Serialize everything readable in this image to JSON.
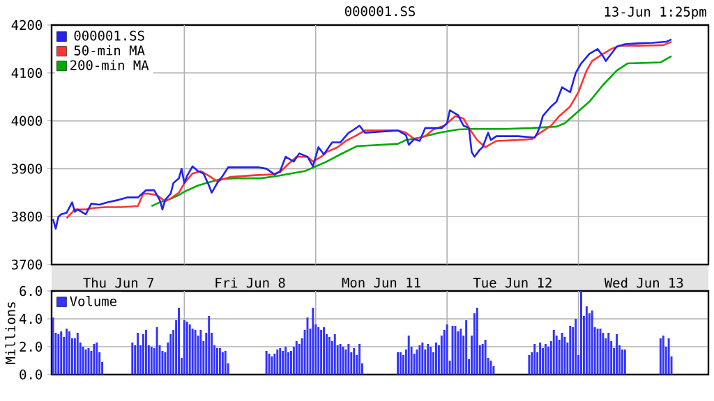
{
  "chart_data": [
    {
      "type": "line",
      "title": "000001.SS",
      "subtitle": "13-Jun 1:25pm",
      "categories": [
        null,
        null,
        null,
        null,
        null,
        null,
        null,
        null,
        null,
        null,
        null,
        null,
        null,
        null,
        null,
        null,
        null,
        null,
        null,
        null,
        null,
        null,
        null,
        null,
        "Thu Jun 7",
        null,
        null,
        null,
        null,
        null,
        null,
        null,
        null,
        null,
        null,
        null,
        null,
        null,
        null,
        null,
        null,
        null,
        null,
        null,
        null,
        null,
        null,
        null,
        null,
        null,
        null,
        null,
        null,
        null,
        null,
        null,
        null,
        null,
        null,
        null,
        null,
        null,
        null,
        null,
        null,
        null,
        null,
        null,
        null,
        null,
        null,
        null,
        "Fri Jun 8",
        null,
        null,
        null,
        null,
        null,
        null,
        null,
        null,
        null,
        null,
        null,
        null,
        null,
        null,
        null,
        null,
        null,
        null,
        null,
        null,
        null,
        null,
        null,
        null,
        null,
        null,
        null,
        null,
        null,
        null,
        null,
        null,
        null,
        null,
        null,
        null,
        null,
        null,
        null,
        null,
        null,
        null,
        null,
        null,
        null,
        null,
        null,
        "Mon Jun 11",
        null,
        null,
        null,
        null,
        null,
        null,
        null,
        null,
        null,
        null,
        null,
        null,
        null,
        null,
        null,
        null,
        null,
        null,
        null,
        null,
        null,
        null,
        null,
        null,
        null,
        null,
        null,
        null,
        null,
        null,
        null,
        null,
        null,
        null,
        null,
        null,
        null,
        null,
        null,
        null,
        null,
        null,
        null,
        null,
        null,
        null,
        null,
        "Tue Jun 12",
        null,
        null,
        null,
        null,
        null,
        null,
        null,
        null,
        null,
        null,
        null,
        null,
        null,
        null,
        null,
        null,
        null,
        null,
        null,
        null,
        null,
        null,
        null,
        null,
        null,
        null,
        null,
        null,
        null,
        null,
        null,
        null,
        null,
        null,
        null,
        null,
        null,
        null,
        null,
        null,
        null,
        null,
        null,
        null,
        null,
        null,
        null,
        "Wed Jun 13",
        null,
        null,
        null,
        null,
        null,
        null,
        null,
        null,
        null,
        null,
        null,
        null,
        null,
        null,
        null,
        null,
        null,
        null,
        null,
        null,
        null,
        null,
        null
      ],
      "ylim": [
        3700,
        4200
      ],
      "yticks": [
        3700,
        3800,
        3900,
        4000,
        4100,
        4200
      ],
      "grid": true,
      "legend": "top left",
      "series": [
        {
          "name": "000001.SS",
          "color": "#2222ee",
          "values": [
            3795,
            3775,
            3800,
            3805,
            null,
            3808,
            null,
            3830,
            3810,
            3815,
            null,
            null,
            3805,
            null,
            3827,
            null,
            null,
            3825,
            null,
            null,
            3830,
            null,
            null,
            null,
            3835,
            null,
            null,
            3840,
            null,
            null,
            null,
            3840,
            null,
            null,
            3855,
            null,
            null,
            3855,
            null,
            3835,
            3815,
            3835,
            null,
            3848,
            3870,
            null,
            3880,
            3900,
            3870,
            3885,
            null,
            3905,
            null,
            3895,
            null,
            3890,
            null,
            3865,
            3850,
            null,
            3870,
            null,
            3885,
            null,
            3903,
            null,
            null,
            null,
            null,
            null,
            3903,
            null,
            null,
            null,
            null,
            3903,
            null,
            null,
            3900,
            null,
            null,
            3888,
            null,
            3895,
            null,
            3925,
            null,
            null,
            3915,
            null,
            3932,
            null,
            null,
            3925,
            null,
            3905,
            null,
            3945,
            null,
            3930,
            null,
            null,
            3955,
            null,
            null,
            3955,
            null,
            null,
            3975,
            null,
            3982,
            null,
            3990,
            null,
            3975,
            null,
            null,
            null,
            null,
            null,
            null,
            null,
            null,
            null,
            null,
            null,
            3980,
            null,
            null,
            3970,
            3950,
            null,
            3962,
            null,
            3958,
            null,
            3985,
            null,
            null,
            3985,
            null,
            null,
            3985,
            null,
            3995,
            4022,
            null,
            null,
            4012,
            null,
            3990,
            null,
            3985,
            3935,
            3925,
            null,
            3940,
            3945,
            null,
            3975,
            3960,
            null,
            3968,
            null,
            null,
            null,
            null,
            null,
            null,
            null,
            3968,
            null,
            null,
            null,
            null,
            null,
            3965,
            3975,
            3990,
            4010,
            null,
            null,
            4030,
            null,
            4040,
            null,
            4070,
            null,
            null,
            4060,
            null,
            4100,
            null,
            4120,
            null,
            null,
            4140,
            null,
            null,
            4150,
            null,
            4135,
            4125,
            null,
            4140,
            null,
            4155,
            null,
            null,
            4160,
            null,
            null,
            null,
            null,
            4162,
            null,
            null,
            null,
            null,
            4163,
            null,
            null,
            null,
            null,
            4165,
            null,
            4170,
            null,
            null,
            null,
            null,
            null,
            null,
            null,
            null,
            null,
            null,
            null,
            null,
            null
          ]
        },
        {
          "name": "50-min MA",
          "color": "#ff3333",
          "values": [
            null,
            null,
            null,
            null,
            null,
            3797,
            null,
            null,
            3815,
            null,
            null,
            null,
            3815,
            null,
            null,
            3818,
            null,
            null,
            null,
            3820,
            null,
            null,
            null,
            null,
            null,
            3820,
            null,
            null,
            null,
            null,
            null,
            3822,
            null,
            3848,
            null,
            3848,
            null,
            null,
            3845,
            null,
            null,
            3832,
            null,
            3838,
            null,
            null,
            3850,
            null,
            3870,
            null,
            null,
            3890,
            null,
            null,
            3895,
            null,
            null,
            3885,
            null,
            null,
            3874,
            null,
            3878,
            null,
            null,
            3883,
            null,
            null,
            null,
            null,
            null,
            null,
            null,
            null,
            null,
            3887,
            null,
            null,
            null,
            null,
            3888,
            null,
            null,
            3893,
            null,
            null,
            3910,
            null,
            null,
            3925,
            null,
            null,
            null,
            3925,
            null,
            3915,
            null,
            null,
            3925,
            null,
            3935,
            null,
            null,
            null,
            3945,
            null,
            null,
            3958,
            null,
            null,
            null,
            3970,
            null,
            null,
            3980,
            null,
            null,
            null,
            null,
            null,
            null,
            null,
            null,
            null,
            null,
            null,
            3980,
            null,
            null,
            3975,
            null,
            null,
            3962,
            null,
            null,
            null,
            3968,
            null,
            null,
            3982,
            null,
            null,
            null,
            3990,
            null,
            null,
            null,
            4010,
            null,
            null,
            4005,
            null,
            3985,
            null,
            null,
            3960,
            null,
            null,
            3945,
            null,
            null,
            null,
            3958,
            null,
            null,
            null,
            null,
            null,
            null,
            null,
            3960,
            null,
            null,
            null,
            null,
            3962,
            null,
            null,
            3975,
            null,
            null,
            null,
            3990,
            null,
            null,
            4010,
            null,
            null,
            null,
            4030,
            null,
            null,
            4060,
            null,
            null,
            4105,
            null,
            4125,
            null,
            null,
            null,
            4140,
            null,
            null,
            4150,
            null,
            null,
            4157,
            null,
            null,
            null,
            null,
            null,
            null,
            4157,
            null,
            null,
            null,
            null,
            null,
            null,
            null,
            null,
            4158,
            null,
            null,
            4165,
            null,
            null,
            null,
            null,
            null,
            null,
            null,
            null,
            null,
            null,
            null,
            null,
            null
          ]
        },
        {
          "name": "200-min MA",
          "color": "#00aa00",
          "values": [
            null,
            null,
            null,
            null,
            null,
            null,
            null,
            null,
            null,
            null,
            null,
            null,
            null,
            null,
            null,
            null,
            null,
            null,
            null,
            null,
            null,
            null,
            null,
            null,
            null,
            null,
            null,
            null,
            null,
            null,
            null,
            null,
            null,
            null,
            null,
            null,
            3822,
            null,
            null,
            3830,
            null,
            null,
            3835,
            null,
            null,
            null,
            3845,
            null,
            3852,
            null,
            null,
            null,
            null,
            3865,
            null,
            null,
            3870,
            null,
            null,
            null,
            null,
            3878,
            null,
            null,
            null,
            null,
            3880,
            null,
            null,
            null,
            null,
            null,
            null,
            null,
            null,
            null,
            3880,
            null,
            null,
            null,
            null,
            null,
            3885,
            null,
            null,
            null,
            null,
            3890,
            null,
            null,
            null,
            null,
            3895,
            null,
            null,
            null,
            3905,
            null,
            null,
            null,
            3915,
            null,
            null,
            null,
            null,
            3930,
            null,
            null,
            null,
            null,
            null,
            3947,
            null,
            null,
            null,
            null,
            null,
            null,
            null,
            null,
            null,
            null,
            null,
            null,
            null,
            null,
            3952,
            null,
            null,
            3960,
            null,
            null,
            null,
            null,
            3965,
            null,
            null,
            null,
            null,
            null,
            null,
            3975,
            null,
            null,
            null,
            null,
            null,
            null,
            3982,
            null,
            null,
            null,
            null,
            3983,
            null,
            null,
            null,
            null,
            null,
            null,
            null,
            null,
            null,
            null,
            null,
            3983,
            null,
            null,
            null,
            null,
            null,
            null,
            null,
            null,
            null,
            3985,
            null,
            null,
            null,
            null,
            null,
            null,
            null,
            null,
            3988,
            null,
            null,
            3995,
            null,
            null,
            4010,
            null,
            null,
            null,
            null,
            null,
            4040,
            null,
            null,
            null,
            null,
            4075,
            null,
            null,
            null,
            null,
            4105,
            null,
            null,
            null,
            4120,
            null,
            null,
            null,
            null,
            null,
            null,
            null,
            null,
            null,
            null,
            null,
            4122,
            null,
            null,
            null,
            4135,
            null,
            null,
            null,
            null,
            null,
            null,
            null,
            null,
            null,
            null,
            null,
            null,
            null
          ]
        }
      ]
    },
    {
      "type": "bar",
      "ylabel": "Millions",
      "ylim": [
        0,
        6
      ],
      "categories": [
        null,
        null,
        null,
        null,
        null,
        null,
        null,
        null,
        null,
        null,
        null,
        null,
        null,
        null,
        null,
        null,
        null,
        null,
        null,
        null,
        null,
        null,
        null,
        null,
        null,
        null,
        null,
        null,
        null,
        null,
        null,
        null,
        null,
        null,
        null,
        null,
        null,
        null,
        null,
        null,
        null,
        null,
        null,
        null,
        null,
        null,
        null,
        null,
        null,
        null,
        null,
        null,
        null,
        null,
        null,
        null,
        null,
        null,
        null,
        null,
        null,
        null,
        null,
        null,
        null,
        null,
        null,
        null,
        null,
        null,
        null,
        null,
        null,
        null,
        null,
        null,
        null,
        null,
        null,
        null,
        null,
        null,
        null,
        null,
        null,
        null,
        null,
        null,
        null,
        null,
        null,
        null,
        null,
        null,
        null,
        null,
        null,
        null,
        null,
        null,
        null,
        null,
        null,
        null,
        null,
        null,
        null,
        null,
        null,
        null,
        null,
        null,
        null,
        null,
        null,
        null,
        null,
        null,
        null,
        null,
        null,
        null,
        null,
        null,
        null,
        null,
        null,
        null,
        null,
        null,
        null,
        null,
        null,
        null,
        null,
        null,
        null,
        null,
        null,
        null,
        null,
        null,
        null,
        null,
        null,
        null,
        null,
        null,
        null,
        null,
        null,
        null,
        null,
        null,
        null,
        null,
        null,
        null,
        null,
        null,
        null,
        null,
        null,
        null,
        null,
        null,
        null,
        null,
        null,
        null,
        null,
        null,
        null,
        null,
        null,
        null,
        null,
        null,
        null,
        null,
        null,
        null,
        null,
        null,
        null,
        null,
        null,
        null,
        null,
        null,
        null,
        null,
        null,
        null,
        null,
        null,
        null,
        null,
        null,
        null,
        null,
        null,
        null,
        null,
        null,
        null,
        null,
        null,
        null,
        null,
        null,
        null,
        null,
        null,
        null,
        null,
        null,
        null,
        null,
        null,
        null,
        null,
        null,
        null,
        null,
        null,
        null,
        null,
        null,
        null,
        null,
        null,
        null,
        null,
        null,
        null,
        null,
        null,
        null,
        null
      ],
      "yticks": [
        {
          "value": 0,
          "label": "0.0"
        },
        {
          "value": 2,
          "label": "2.0"
        },
        {
          "value": 4,
          "label": "4.0"
        },
        {
          "value": 6,
          "label": "6.0"
        }
      ],
      "tick_labels": "y",
      "grid": true,
      "legend": "top left",
      "series": [
        {
          "name": "Volume",
          "color": "#3333ff",
          "values": [
            4.1,
            3.0,
            2.9,
            3.1,
            2.7,
            3.3,
            3.1,
            2.6,
            2.6,
            3.0,
            2.3,
            2.0,
            1.8,
            1.9,
            1.7,
            2.2,
            2.3,
            1.6,
            0.9,
            null,
            null,
            null,
            null,
            null,
            null,
            null,
            null,
            null,
            null,
            2.3,
            2.1,
            3.0,
            2.1,
            2.9,
            3.2,
            2.1,
            2.0,
            1.9,
            3.4,
            2.1,
            1.7,
            1.6,
            2.3,
            2.9,
            3.2,
            3.9,
            4.8,
            1.2,
            3.9,
            3.8,
            3.6,
            3.3,
            3.2,
            2.8,
            3.2,
            2.4,
            3.0,
            4.2,
            3.0,
            2.1,
            1.9,
            1.9,
            1.6,
            1.7,
            0.8,
            null,
            null,
            null,
            null,
            null,
            null,
            null,
            null,
            null,
            null,
            null,
            null,
            null,
            1.7,
            1.5,
            1.3,
            1.5,
            1.8,
            1.9,
            1.7,
            2.0,
            1.6,
            1.7,
            2.0,
            2.4,
            2.2,
            2.6,
            3.2,
            4.1,
            3.3,
            4.8,
            3.6,
            3.4,
            3.2,
            3.4,
            2.9,
            2.7,
            2.4,
            2.9,
            2.1,
            2.2,
            2.0,
            1.8,
            2.2,
            1.6,
            1.9,
            1.4,
            2.2,
            0.8,
            null,
            null,
            null,
            null,
            null,
            null,
            null,
            null,
            null,
            null,
            null,
            null,
            1.6,
            1.6,
            1.4,
            1.8,
            2.8,
            2.0,
            1.5,
            1.8,
            2.1,
            2.3,
            1.8,
            2.2,
            2.0,
            1.6,
            2.3,
            2.1,
            2.8,
            3.2,
            3.6,
            1.0,
            3.5,
            3.5,
            3.1,
            3.3,
            2.8,
            3.9,
            1.1,
            2.8,
            4.4,
            4.8,
            2.1,
            2.2,
            2.5,
            1.2,
            1.0,
            0.6,
            null,
            null,
            null,
            null,
            null,
            null,
            null,
            null,
            null,
            null,
            null,
            null,
            1.4,
            1.6,
            2.2,
            1.6,
            2.3,
            1.9,
            2.2,
            2.0,
            2.4,
            3.2,
            2.8,
            2.5,
            3.0,
            2.7,
            2.3,
            3.5,
            3.4,
            4.0,
            1.4,
            6.0,
            4.2,
            4.9,
            4.4,
            4.6,
            3.4,
            3.3,
            3.3,
            3.0,
            2.6,
            3.0,
            2.4,
            1.9,
            2.9,
            2.1,
            1.8,
            1.8,
            null,
            null,
            null,
            null,
            null,
            null,
            null,
            null,
            null,
            null,
            null,
            null,
            2.6,
            2.8,
            2.0,
            2.6,
            1.3,
            null,
            null,
            null,
            null,
            null,
            null,
            null,
            null,
            null,
            null,
            null,
            null,
            null
          ]
        }
      ]
    }
  ]
}
